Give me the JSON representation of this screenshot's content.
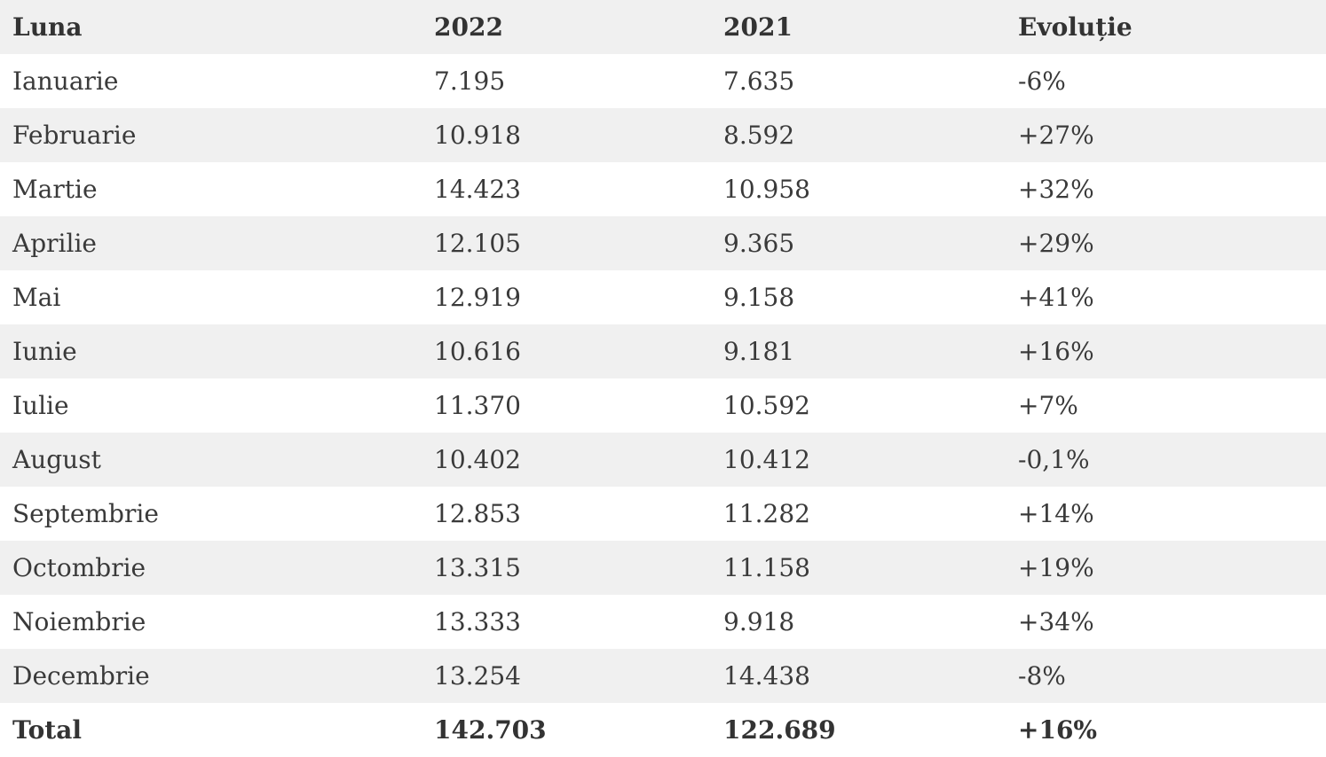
{
  "table": {
    "headers": {
      "month": "Luna",
      "year_current": "2022",
      "year_previous": "2021",
      "evolution": "Evoluție"
    },
    "rows": [
      {
        "month": "Ianuarie",
        "year_current": "7.195",
        "year_previous": "7.635",
        "evolution": "-6%"
      },
      {
        "month": "Februarie",
        "year_current": "10.918",
        "year_previous": "8.592",
        "evolution": "+27%"
      },
      {
        "month": "Martie",
        "year_current": "14.423",
        "year_previous": "10.958",
        "evolution": "+32%"
      },
      {
        "month": "Aprilie",
        "year_current": "12.105",
        "year_previous": "9.365",
        "evolution": "+29%"
      },
      {
        "month": "Mai",
        "year_current": "12.919",
        "year_previous": "9.158",
        "evolution": "+41%"
      },
      {
        "month": "Iunie",
        "year_current": "10.616",
        "year_previous": "9.181",
        "evolution": "+16%"
      },
      {
        "month": "Iulie",
        "year_current": "11.370",
        "year_previous": "10.592",
        "evolution": "+7%"
      },
      {
        "month": "August",
        "year_current": "10.402",
        "year_previous": "10.412",
        "evolution": "-0,1%"
      },
      {
        "month": "Septembrie",
        "year_current": "12.853",
        "year_previous": "11.282",
        "evolution": "+14%"
      },
      {
        "month": "Octombrie",
        "year_current": "13.315",
        "year_previous": "11.158",
        "evolution": "+19%"
      },
      {
        "month": "Noiembrie",
        "year_current": "13.333",
        "year_previous": "9.918",
        "evolution": "+34%"
      },
      {
        "month": "Decembrie",
        "year_current": "13.254",
        "year_previous": "14.438",
        "evolution": "-8%"
      }
    ],
    "total": {
      "month": "Total",
      "year_current": "142.703",
      "year_previous": "122.689",
      "evolution": "+16%"
    }
  },
  "colors": {
    "stripe": "#f0f0f0",
    "text": "#3a3a3a"
  }
}
